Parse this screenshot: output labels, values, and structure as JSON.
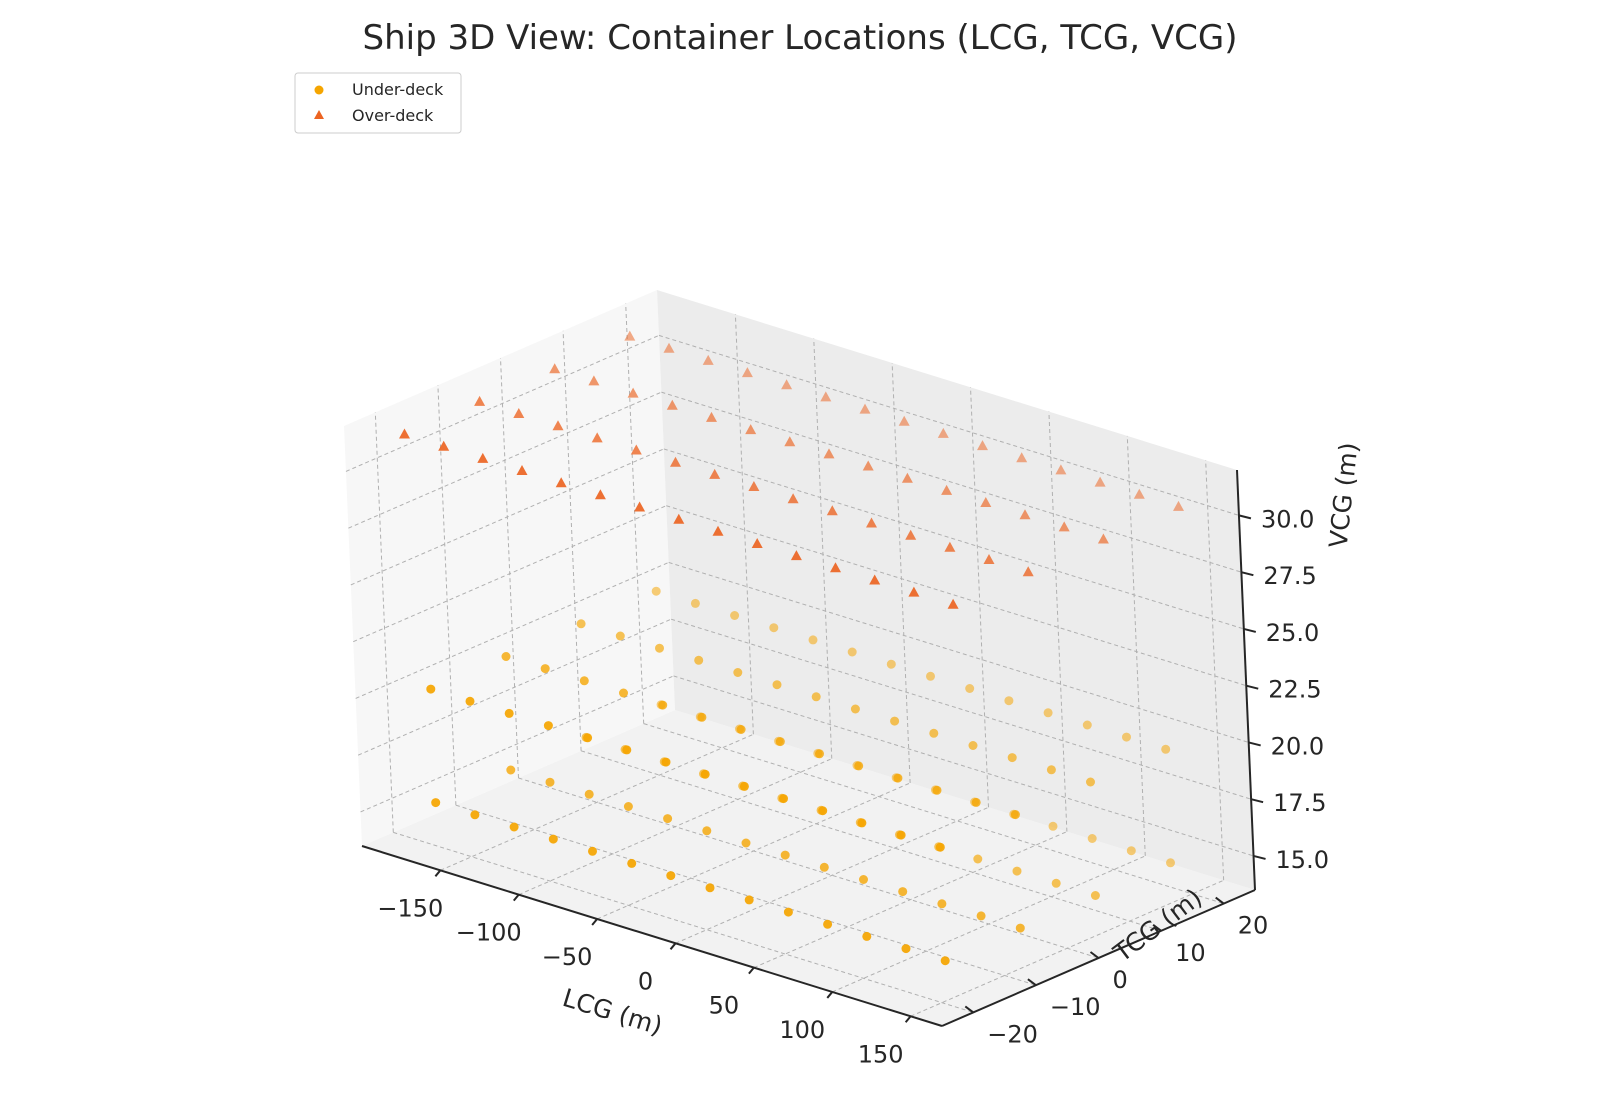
{
  "chart_data": {
    "type": "scatter",
    "projection": "3d",
    "title": "Ship 3D View: Container Locations (LCG, TCG, VCG)",
    "xlabel": "LCG (m)",
    "ylabel": "TCG (m)",
    "zlabel": "VCG (m)",
    "xlim": [
      -200,
      170
    ],
    "ylim": [
      -25,
      25
    ],
    "zlim": [
      13.5,
      32
    ],
    "xticks": [
      -150,
      -100,
      -50,
      0,
      50,
      100,
      150
    ],
    "xtick_labels": [
      "−150",
      "−100",
      "−50",
      "0",
      "50",
      "100",
      "150"
    ],
    "yticks": [
      -20,
      -10,
      0,
      10,
      20
    ],
    "ytick_labels": [
      "−20",
      "−10",
      "0",
      "10",
      "20"
    ],
    "zticks": [
      15,
      17.5,
      20,
      22.5,
      25,
      27.5,
      30
    ],
    "ztick_labels": [
      "15.0",
      "17.5",
      "20.0",
      "22.5",
      "25.0",
      "27.5",
      "30.0"
    ],
    "grid": true,
    "legend_position": "top-left",
    "series": [
      {
        "name": "Under-deck",
        "marker": "circle",
        "color": "#f5a500",
        "grid_x": [
          -180,
          -155,
          -130,
          -105,
          -80,
          -55,
          -30,
          -5,
          20,
          45,
          70,
          95,
          120,
          145
        ],
        "grid_y": [
          -18,
          -6,
          6,
          18
        ],
        "z_levels": [
          15,
          20
        ]
      },
      {
        "name": "Over-deck",
        "marker": "triangle",
        "color": "#ec6422",
        "grid_x": [
          -190,
          -165,
          -140,
          -115,
          -90,
          -65,
          -40,
          -15,
          10,
          35,
          60,
          85,
          110,
          135,
          160
        ],
        "grid_y": [
          -18,
          -6,
          6,
          18
        ],
        "z_levels": [
          31
        ]
      }
    ]
  }
}
